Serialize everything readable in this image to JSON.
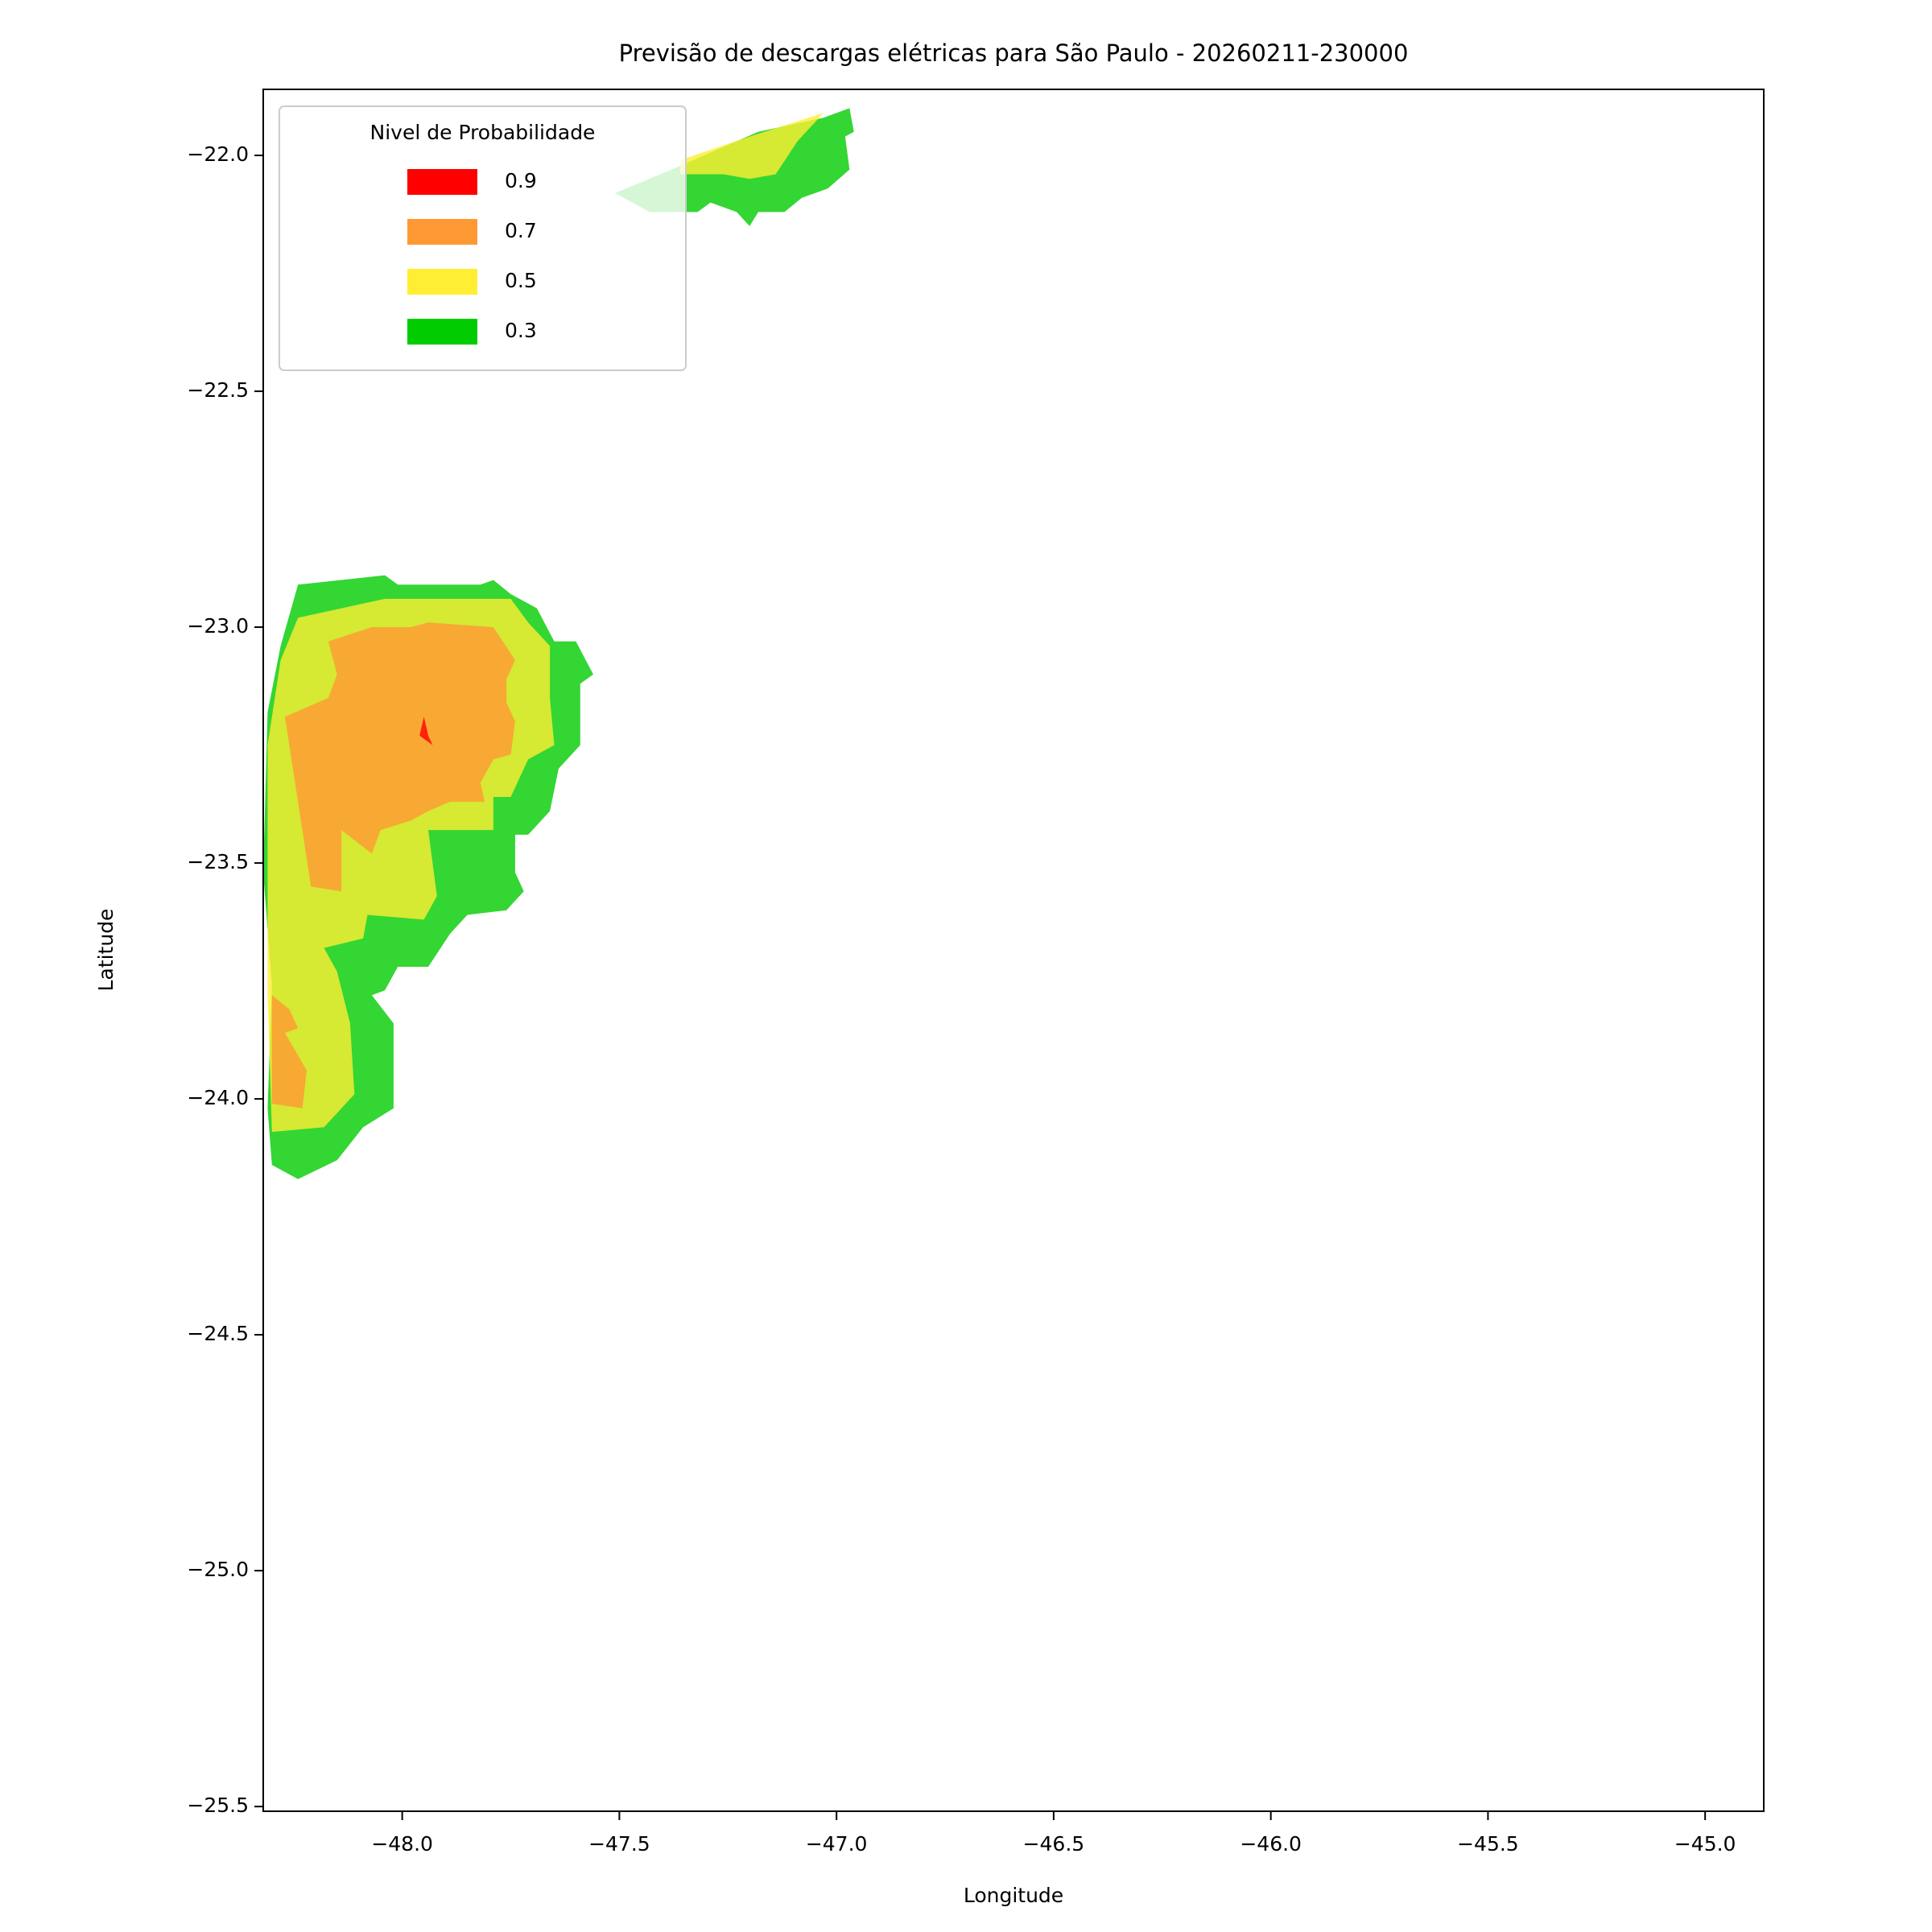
{
  "chart_data": {
    "type": "contour",
    "title": "Previsão de descargas elétricas para São Paulo - 20260211-230000",
    "xlabel": "Longitude",
    "ylabel": "Latitude",
    "xlim": [
      -48.32,
      -44.865
    ],
    "ylim": [
      -25.51,
      -21.86
    ],
    "xticks": [
      {
        "value": -48.0,
        "label": "−48.0"
      },
      {
        "value": -47.5,
        "label": "−47.5"
      },
      {
        "value": -47.0,
        "label": "−47.0"
      },
      {
        "value": -46.5,
        "label": "−46.5"
      },
      {
        "value": -46.0,
        "label": "−46.0"
      },
      {
        "value": -45.5,
        "label": "−45.5"
      },
      {
        "value": -45.0,
        "label": "−45.0"
      }
    ],
    "yticks": [
      {
        "value": -22.0,
        "label": "−22.0"
      },
      {
        "value": -22.5,
        "label": "−22.5"
      },
      {
        "value": -23.0,
        "label": "−23.0"
      },
      {
        "value": -23.5,
        "label": "−23.5"
      },
      {
        "value": -24.0,
        "label": "−24.0"
      },
      {
        "value": -24.5,
        "label": "−24.5"
      },
      {
        "value": -25.0,
        "label": "−25.0"
      },
      {
        "value": -25.5,
        "label": "−25.5"
      }
    ],
    "legend": {
      "title": "Nivel de Probabilidade",
      "loc": "upper left"
    },
    "series": [
      {
        "name": "0.9",
        "color": "#ff0000",
        "polygons": [
          {
            "x": [
              -47.95,
              -47.94,
              -47.93,
              -47.96
            ],
            "y": [
              -23.19,
              -23.23,
              -23.25,
              -23.23
            ]
          }
        ]
      },
      {
        "name": "0.7",
        "color": "#ff9933",
        "polygons": [
          {
            "x": [
              -48.17,
              -48.07,
              -47.98,
              -47.94,
              -47.79,
              -47.74,
              -47.76,
              -47.76,
              -47.74,
              -47.75,
              -47.79,
              -47.82,
              -47.81,
              -47.89,
              -47.94,
              -47.98,
              -48.05,
              -48.07,
              -48.14,
              -48.14,
              -48.21,
              -48.25,
              -48.27,
              -48.17,
              -48.15
            ],
            "y": [
              -23.03,
              -23.0,
              -23.0,
              -22.99,
              -23.0,
              -23.07,
              -23.11,
              -23.16,
              -23.2,
              -23.27,
              -23.28,
              -23.33,
              -23.37,
              -23.37,
              -23.39,
              -23.41,
              -23.43,
              -23.48,
              -23.43,
              -23.56,
              -23.55,
              -23.31,
              -23.19,
              -23.15,
              -23.1
            ]
          },
          {
            "x": [
              -48.3,
              -48.26,
              -48.24,
              -48.27,
              -48.22,
              -48.23,
              -48.3
            ],
            "y": [
              -23.78,
              -23.81,
              -23.85,
              -23.86,
              -23.94,
              -24.02,
              -24.01
            ]
          }
        ]
      },
      {
        "name": "0.5",
        "color": "#ffee33",
        "polygons": [
          {
            "x": [
              -48.24,
              -48.04,
              -47.75,
              -47.71,
              -47.66,
              -47.66,
              -47.65,
              -47.71,
              -47.75,
              -47.79,
              -47.79,
              -47.94,
              -47.92,
              -47.95,
              -48.08,
              -48.09,
              -48.18,
              -48.15,
              -48.12,
              -48.11,
              -48.18,
              -48.3,
              -48.31,
              -48.31,
              -48.28
            ],
            "y": [
              -22.98,
              -22.94,
              -22.94,
              -22.99,
              -23.04,
              -23.15,
              -23.25,
              -23.28,
              -23.36,
              -23.36,
              -23.43,
              -23.43,
              -23.57,
              -23.62,
              -23.61,
              -23.66,
              -23.68,
              -23.73,
              -23.84,
              -23.99,
              -24.06,
              -24.07,
              -23.78,
              -23.25,
              -23.07
            ]
          },
          {
            "x": [
              -47.36,
              -47.2,
              -47.03,
              -47.09,
              -47.14,
              -47.2,
              -47.26,
              -47.32,
              -47.36
            ],
            "y": [
              -22.01,
              -21.96,
              -21.91,
              -21.97,
              -22.04,
              -22.05,
              -22.04,
              -22.04,
              -22.04
            ]
          }
        ]
      },
      {
        "name": "0.3",
        "color": "#00cc00",
        "polygons": [
          {
            "x": [
              -48.24,
              -48.04,
              -48.01,
              -47.82,
              -47.79,
              -47.75,
              -47.69,
              -47.65,
              -47.6,
              -47.56,
              -47.59,
              -47.59,
              -47.64,
              -47.66,
              -47.71,
              -47.74,
              -47.74,
              -47.72,
              -47.76,
              -47.85,
              -47.89,
              -47.94,
              -48.01,
              -48.04,
              -48.07,
              -48.02,
              -48.02,
              -48.09,
              -48.15,
              -48.24,
              -48.3,
              -48.31,
              -48.3,
              -48.32,
              -48.31,
              -48.28
            ],
            "y": [
              -22.91,
              -22.89,
              -22.91,
              -22.91,
              -22.9,
              -22.93,
              -22.96,
              -23.03,
              -23.03,
              -23.1,
              -23.12,
              -23.25,
              -23.3,
              -23.39,
              -23.44,
              -23.44,
              -23.52,
              -23.56,
              -23.6,
              -23.61,
              -23.65,
              -23.72,
              -23.72,
              -23.77,
              -23.78,
              -23.84,
              -24.02,
              -24.06,
              -24.13,
              -24.17,
              -24.14,
              -24.02,
              -23.76,
              -23.52,
              -23.18,
              -23.04
            ]
          },
          {
            "x": [
              -47.51,
              -47.38,
              -47.28,
              -47.18,
              -47.03,
              -46.97,
              -46.96,
              -46.98,
              -46.97,
              -47.02,
              -47.08,
              -47.12,
              -47.18,
              -47.2,
              -47.23,
              -47.26,
              -47.29,
              -47.32,
              -47.43
            ],
            "y": [
              -22.08,
              -22.03,
              -21.99,
              -21.95,
              -21.92,
              -21.9,
              -21.95,
              -21.96,
              -22.03,
              -22.07,
              -22.09,
              -22.12,
              -22.12,
              -22.15,
              -22.12,
              -22.11,
              -22.1,
              -22.12,
              -22.12
            ]
          }
        ]
      }
    ]
  }
}
